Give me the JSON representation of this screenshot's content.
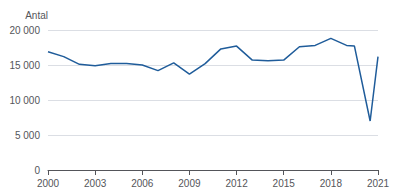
{
  "chart_data": {
    "type": "line",
    "ylabel": "Antal",
    "x": [
      2000,
      2001,
      2002,
      2003,
      2004,
      2005,
      2006,
      2007,
      2008,
      2009,
      2010,
      2011,
      2012,
      2013,
      2014,
      2015,
      2016,
      2017,
      2018,
      2019,
      2019.5,
      2020.5,
      2021
    ],
    "values": [
      16900,
      16200,
      15100,
      14900,
      15200,
      15200,
      15000,
      14200,
      15300,
      13700,
      15200,
      17300,
      17700,
      15700,
      15600,
      15700,
      17600,
      17800,
      18800,
      17800,
      17700,
      7000,
      16200
    ],
    "color": "#1F5C9A",
    "xlim": [
      2000,
      2021
    ],
    "ylim": [
      0,
      20000
    ],
    "xticks": [
      2000,
      2003,
      2006,
      2009,
      2012,
      2015,
      2018,
      2021
    ],
    "yticks": [
      0,
      {
        "value": 5000,
        "label": "5 000"
      },
      {
        "value": 10000,
        "label": "10 000"
      },
      {
        "value": 15000,
        "label": "15 000"
      },
      {
        "value": 20000,
        "label": "20 000"
      }
    ],
    "grid": true
  }
}
